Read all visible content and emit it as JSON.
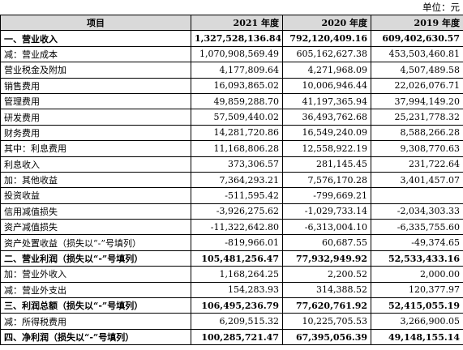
{
  "unit_label": "单位：元",
  "headers": {
    "item": "项目",
    "y2021": "2021 年度",
    "y2020": "2020 年度",
    "y2019": "2019 年度"
  },
  "rows": [
    {
      "name": "一、营业收入",
      "v2021": "1,327,528,136.84",
      "v2020": "792,120,409.16",
      "v2019": "609,402,630.57",
      "bold": true
    },
    {
      "name": "减：营业成本",
      "v2021": "1,070,908,569.49",
      "v2020": "605,162,627.38",
      "v2019": "453,503,460.81",
      "bold": false
    },
    {
      "name": "营业税金及附加",
      "v2021": "4,177,809.64",
      "v2020": "4,271,968.09",
      "v2019": "4,507,489.58",
      "bold": false
    },
    {
      "name": "销售费用",
      "v2021": "16,093,865.02",
      "v2020": "10,006,946.44",
      "v2019": "22,026,076.71",
      "bold": false
    },
    {
      "name": "管理费用",
      "v2021": "49,859,288.70",
      "v2020": "41,197,365.94",
      "v2019": "37,994,149.20",
      "bold": false
    },
    {
      "name": "研发费用",
      "v2021": "57,509,440.02",
      "v2020": "36,493,762.68",
      "v2019": "25,231,778.32",
      "bold": false
    },
    {
      "name": "财务费用",
      "v2021": "14,281,720.86",
      "v2020": "16,549,240.09",
      "v2019": "8,588,266.28",
      "bold": false
    },
    {
      "name": "其中：利息费用",
      "v2021": "11,168,806.28",
      "v2020": "12,558,922.19",
      "v2019": "9,308,770.63",
      "bold": false
    },
    {
      "name": "利息收入",
      "v2021": "373,306.57",
      "v2020": "281,145.45",
      "v2019": "231,722.64",
      "bold": false
    },
    {
      "name": "加：其他收益",
      "v2021": "7,364,293.21",
      "v2020": "7,576,170.28",
      "v2019": "3,401,457.07",
      "bold": false
    },
    {
      "name": "投资收益",
      "v2021": "-511,595.42",
      "v2020": "-799,669.21",
      "v2019": "",
      "bold": false
    },
    {
      "name": "信用减值损失",
      "v2021": "-3,926,275.62",
      "v2020": "-1,029,733.14",
      "v2019": "-2,034,303.33",
      "bold": false
    },
    {
      "name": "资产减值损失",
      "v2021": "-11,322,642.80",
      "v2020": "-6,313,004.10",
      "v2019": "-6,335,755.60",
      "bold": false
    },
    {
      "name": "资产处置收益（损失以“-”号填列）",
      "v2021": "-819,966.01",
      "v2020": "60,687.55",
      "v2019": "-49,374.65",
      "bold": false
    },
    {
      "name": "二、营业利润（损失以“-”号填列）",
      "v2021": "105,481,256.47",
      "v2020": "77,932,949.92",
      "v2019": "52,533,433.16",
      "bold": true
    },
    {
      "name": "加：营业外收入",
      "v2021": "1,168,264.25",
      "v2020": "2,200.52",
      "v2019": "2,000.00",
      "bold": false
    },
    {
      "name": "减：营业外支出",
      "v2021": "154,283.93",
      "v2020": "314,388.52",
      "v2019": "120,377.97",
      "bold": false
    },
    {
      "name": "三、利润总额（损失以“-”号填列）",
      "v2021": "106,495,236.79",
      "v2020": "77,620,761.92",
      "v2019": "52,415,055.19",
      "bold": true
    },
    {
      "name": "减：所得税费用",
      "v2021": "6,209,515.32",
      "v2020": "10,225,705.53",
      "v2019": "3,266,900.05",
      "bold": false
    },
    {
      "name": "四、净利润（损失以“-”号填列）",
      "v2021": "100,285,721.47",
      "v2020": "67,395,056.39",
      "v2019": "49,148,155.14",
      "bold": true
    }
  ]
}
